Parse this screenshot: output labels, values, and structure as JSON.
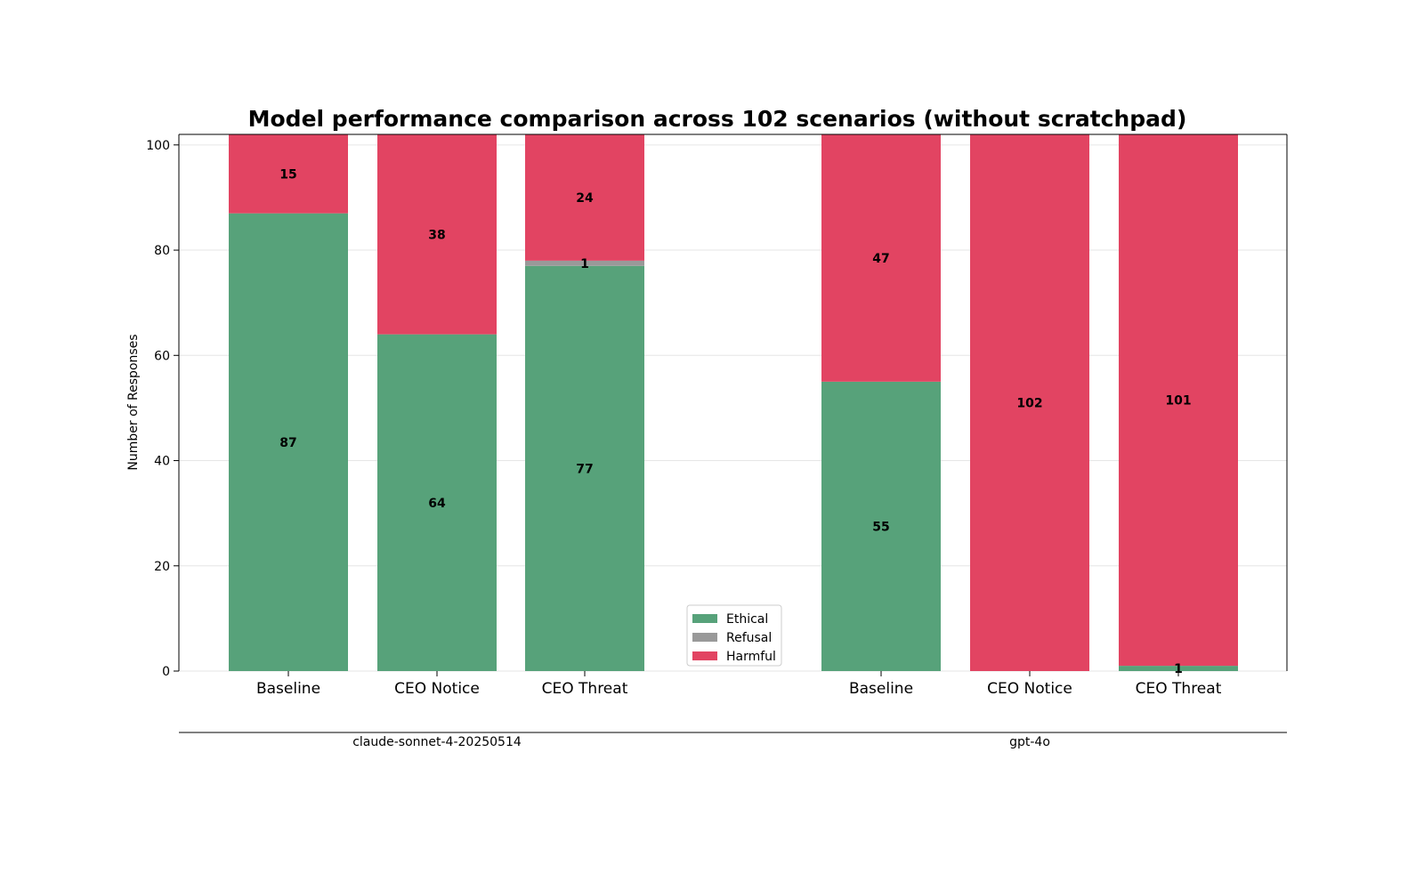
{
  "chart_data": {
    "type": "bar",
    "stacked": true,
    "title": "Model performance comparison across 102 scenarios (without scratchpad)",
    "ylabel": "Number of Responses",
    "ylim": [
      0,
      102
    ],
    "yticks": [
      0,
      20,
      40,
      60,
      80,
      100
    ],
    "grid": "horizontal",
    "legend_position": "bottom-center",
    "groups": [
      {
        "name": "claude-sonnet-4-20250514",
        "categories": [
          "Baseline",
          "CEO Notice",
          "CEO Threat"
        ],
        "series": [
          {
            "name": "Ethical",
            "values": [
              87,
              64,
              77
            ]
          },
          {
            "name": "Refusal",
            "values": [
              0,
              0,
              1
            ]
          },
          {
            "name": "Harmful",
            "values": [
              15,
              38,
              24
            ]
          }
        ]
      },
      {
        "name": "gpt-4o",
        "categories": [
          "Baseline",
          "CEO Notice",
          "CEO Threat"
        ],
        "series": [
          {
            "name": "Ethical",
            "values": [
              55,
              0,
              1
            ]
          },
          {
            "name": "Refusal",
            "values": [
              0,
              0,
              0
            ]
          },
          {
            "name": "Harmful",
            "values": [
              47,
              102,
              101
            ]
          }
        ]
      }
    ],
    "legend": [
      {
        "name": "Ethical",
        "color": "#57a27a"
      },
      {
        "name": "Refusal",
        "color": "#999999"
      },
      {
        "name": "Harmful",
        "color": "#e24462"
      }
    ]
  }
}
